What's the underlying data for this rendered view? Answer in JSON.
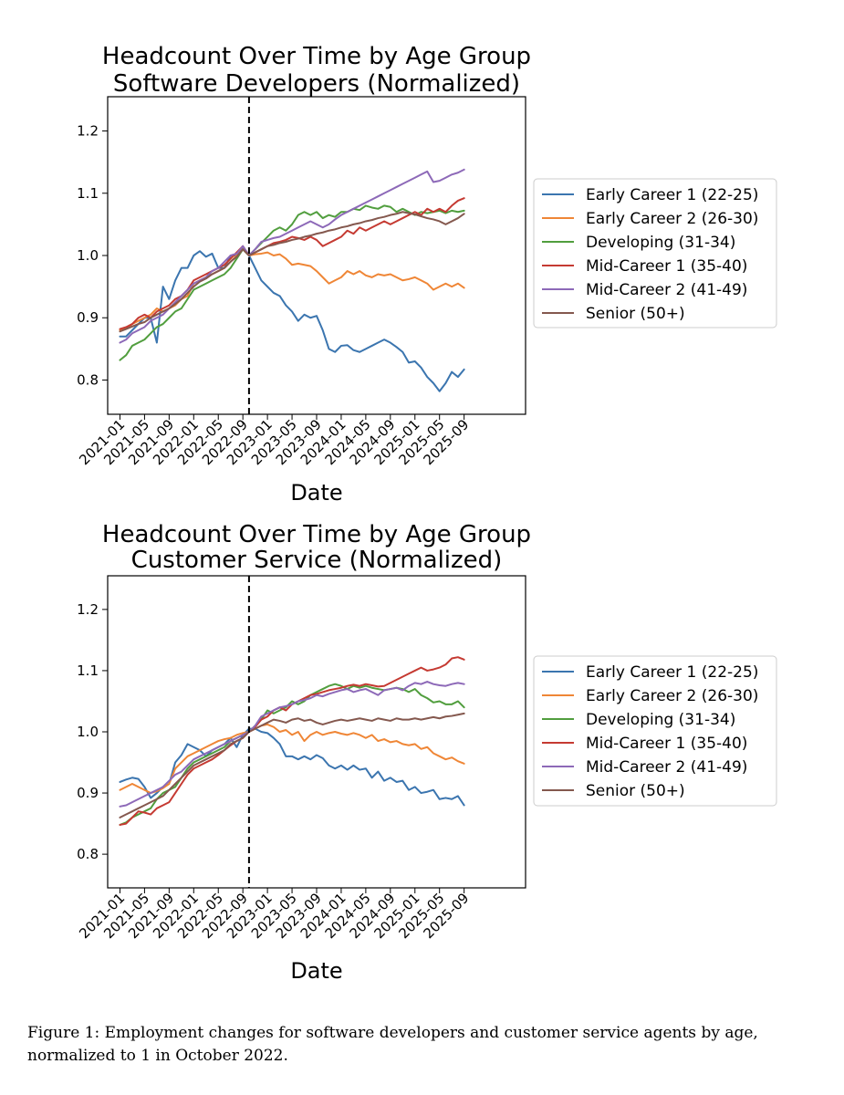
{
  "caption": "Figure 1: Employment changes for software developers and customer service agents by age, normalized to 1 in October 2022.",
  "colors": {
    "early1": "#3b75af",
    "early2": "#ef8636",
    "developing": "#519e3e",
    "mid1": "#c53a32",
    "mid2": "#8d69b8",
    "senior": "#84584e"
  },
  "chart_data": [
    {
      "type": "line",
      "title": "Headcount Over Time by Age Group\nSoftware Developers (Normalized)",
      "title_lines": [
        "Headcount Over Time by Age Group",
        "Software Developers (Normalized)"
      ],
      "xlabel": "Date",
      "ylabel": "",
      "x_range_months": [
        -2,
        66
      ],
      "ylim": [
        0.745,
        1.255
      ],
      "yticks": [
        0.8,
        0.9,
        1.0,
        1.1,
        1.2
      ],
      "ytick_labels": [
        "0.8",
        "0.9",
        "1.0",
        "1.1",
        "1.2"
      ],
      "xticks": [
        {
          "label": "2021-01",
          "m": 0
        },
        {
          "label": "2021-05",
          "m": 4
        },
        {
          "label": "2021-09",
          "m": 8
        },
        {
          "label": "2022-01",
          "m": 12
        },
        {
          "label": "2022-05",
          "m": 16
        },
        {
          "label": "2022-09",
          "m": 20
        },
        {
          "label": "2023-01",
          "m": 24
        },
        {
          "label": "2023-05",
          "m": 28
        },
        {
          "label": "2023-09",
          "m": 32
        },
        {
          "label": "2024-01",
          "m": 36
        },
        {
          "label": "2024-05",
          "m": 40
        },
        {
          "label": "2024-09",
          "m": 44
        },
        {
          "label": "2025-01",
          "m": 48
        },
        {
          "label": "2025-05",
          "m": 52
        },
        {
          "label": "2025-09",
          "m": 56
        }
      ],
      "vline_month": 21,
      "x_start": "2021-01",
      "legend_position": "right",
      "series": [
        {
          "name": "Early Career 1 (22-25)",
          "color_key": "early1",
          "values": [
            0.87,
            0.87,
            0.88,
            0.89,
            0.9,
            0.9,
            0.86,
            0.95,
            0.93,
            0.96,
            0.98,
            0.98,
            1.0,
            1.007,
            0.998,
            1.003,
            0.98,
            0.98,
            1.0,
            1.0,
            1.015,
            1.0,
            0.98,
            0.96,
            0.95,
            0.94,
            0.935,
            0.92,
            0.91,
            0.895,
            0.905,
            0.9,
            0.903,
            0.88,
            0.85,
            0.845,
            0.855,
            0.856,
            0.848,
            0.845,
            0.85,
            0.855,
            0.86,
            0.865,
            0.86,
            0.853,
            0.845,
            0.828,
            0.83,
            0.82,
            0.805,
            0.795,
            0.782,
            0.795,
            0.813,
            0.805,
            0.817
          ]
        },
        {
          "name": "Early Career 2 (26-30)",
          "color_key": "early2",
          "values": [
            0.88,
            0.882,
            0.89,
            0.895,
            0.9,
            0.905,
            0.915,
            0.91,
            0.915,
            0.92,
            0.93,
            0.935,
            0.955,
            0.96,
            0.965,
            0.97,
            0.975,
            0.98,
            0.99,
            1.0,
            1.01,
            1.0,
            1.002,
            1.003,
            1.005,
            1.0,
            1.002,
            0.995,
            0.985,
            0.987,
            0.985,
            0.983,
            0.975,
            0.965,
            0.955,
            0.96,
            0.965,
            0.975,
            0.97,
            0.975,
            0.968,
            0.965,
            0.97,
            0.968,
            0.97,
            0.965,
            0.96,
            0.962,
            0.965,
            0.96,
            0.955,
            0.945,
            0.95,
            0.955,
            0.95,
            0.955,
            0.948
          ]
        },
        {
          "name": "Developing (31-34)",
          "color_key": "developing",
          "values": [
            0.832,
            0.84,
            0.855,
            0.86,
            0.865,
            0.875,
            0.885,
            0.89,
            0.9,
            0.91,
            0.915,
            0.93,
            0.945,
            0.95,
            0.955,
            0.96,
            0.965,
            0.97,
            0.98,
            0.995,
            1.01,
            1.0,
            1.01,
            1.02,
            1.03,
            1.04,
            1.045,
            1.04,
            1.05,
            1.065,
            1.07,
            1.065,
            1.07,
            1.06,
            1.065,
            1.062,
            1.07,
            1.07,
            1.075,
            1.073,
            1.08,
            1.077,
            1.075,
            1.08,
            1.078,
            1.07,
            1.075,
            1.07,
            1.065,
            1.07,
            1.068,
            1.07,
            1.072,
            1.068,
            1.072,
            1.07,
            1.072
          ]
        },
        {
          "name": "Mid-Career 1 (35-40)",
          "color_key": "mid1",
          "values": [
            0.882,
            0.885,
            0.89,
            0.9,
            0.905,
            0.9,
            0.91,
            0.915,
            0.92,
            0.93,
            0.935,
            0.945,
            0.96,
            0.965,
            0.97,
            0.975,
            0.98,
            0.985,
            0.995,
            1.005,
            1.015,
            1.0,
            1.005,
            1.01,
            1.015,
            1.02,
            1.022,
            1.025,
            1.03,
            1.028,
            1.025,
            1.03,
            1.025,
            1.015,
            1.02,
            1.025,
            1.03,
            1.04,
            1.035,
            1.045,
            1.04,
            1.045,
            1.05,
            1.055,
            1.05,
            1.055,
            1.06,
            1.065,
            1.07,
            1.065,
            1.075,
            1.07,
            1.075,
            1.07,
            1.08,
            1.088,
            1.092
          ]
        },
        {
          "name": "Mid-Career 2 (41-49)",
          "color_key": "mid2",
          "values": [
            0.86,
            0.865,
            0.875,
            0.88,
            0.885,
            0.895,
            0.9,
            0.905,
            0.915,
            0.925,
            0.935,
            0.945,
            0.955,
            0.96,
            0.965,
            0.975,
            0.98,
            0.99,
            1.0,
            1.003,
            1.015,
            1.0,
            1.01,
            1.022,
            1.025,
            1.028,
            1.03,
            1.035,
            1.04,
            1.045,
            1.05,
            1.055,
            1.05,
            1.045,
            1.05,
            1.058,
            1.065,
            1.07,
            1.075,
            1.08,
            1.085,
            1.09,
            1.095,
            1.1,
            1.105,
            1.11,
            1.115,
            1.12,
            1.125,
            1.13,
            1.135,
            1.118,
            1.12,
            1.125,
            1.13,
            1.133,
            1.138
          ]
        },
        {
          "name": "Senior (50+)",
          "color_key": "senior",
          "values": [
            0.878,
            0.882,
            0.886,
            0.89,
            0.893,
            0.9,
            0.905,
            0.91,
            0.915,
            0.922,
            0.93,
            0.94,
            0.95,
            0.958,
            0.963,
            0.97,
            0.975,
            0.98,
            0.99,
            0.998,
            1.01,
            1.0,
            1.005,
            1.01,
            1.015,
            1.017,
            1.02,
            1.022,
            1.025,
            1.027,
            1.03,
            1.032,
            1.035,
            1.037,
            1.04,
            1.042,
            1.045,
            1.047,
            1.05,
            1.052,
            1.055,
            1.057,
            1.06,
            1.062,
            1.065,
            1.067,
            1.07,
            1.068,
            1.066,
            1.063,
            1.06,
            1.058,
            1.055,
            1.05,
            1.055,
            1.06,
            1.067
          ]
        }
      ]
    },
    {
      "type": "line",
      "title": "Headcount Over Time by Age Group\nCustomer Service (Normalized)",
      "title_lines": [
        "Headcount Over Time by Age Group",
        "Customer Service (Normalized)"
      ],
      "xlabel": "Date",
      "ylabel": "",
      "x_range_months": [
        -2,
        66
      ],
      "ylim": [
        0.745,
        1.255
      ],
      "yticks": [
        0.8,
        0.9,
        1.0,
        1.1,
        1.2
      ],
      "ytick_labels": [
        "0.8",
        "0.9",
        "1.0",
        "1.1",
        "1.2"
      ],
      "xticks": [
        {
          "label": "2021-01",
          "m": 0
        },
        {
          "label": "2021-05",
          "m": 4
        },
        {
          "label": "2021-09",
          "m": 8
        },
        {
          "label": "2022-01",
          "m": 12
        },
        {
          "label": "2022-05",
          "m": 16
        },
        {
          "label": "2022-09",
          "m": 20
        },
        {
          "label": "2023-01",
          "m": 24
        },
        {
          "label": "2023-05",
          "m": 28
        },
        {
          "label": "2023-09",
          "m": 32
        },
        {
          "label": "2024-01",
          "m": 36
        },
        {
          "label": "2024-05",
          "m": 40
        },
        {
          "label": "2024-09",
          "m": 44
        },
        {
          "label": "2025-01",
          "m": 48
        },
        {
          "label": "2025-05",
          "m": 52
        },
        {
          "label": "2025-09",
          "m": 56
        }
      ],
      "vline_month": 21,
      "x_start": "2021-01",
      "legend_position": "right",
      "series": [
        {
          "name": "Early Career 1 (22-25)",
          "color_key": "early1",
          "values": [
            0.918,
            0.922,
            0.925,
            0.923,
            0.91,
            0.892,
            0.9,
            0.91,
            0.915,
            0.95,
            0.962,
            0.98,
            0.975,
            0.97,
            0.96,
            0.97,
            0.975,
            0.98,
            0.99,
            0.975,
            0.995,
            1.005,
            1.005,
            1.0,
            0.998,
            0.99,
            0.98,
            0.96,
            0.96,
            0.955,
            0.96,
            0.955,
            0.962,
            0.957,
            0.945,
            0.94,
            0.945,
            0.938,
            0.945,
            0.938,
            0.94,
            0.925,
            0.935,
            0.92,
            0.925,
            0.918,
            0.92,
            0.905,
            0.91,
            0.9,
            0.902,
            0.905,
            0.89,
            0.892,
            0.89,
            0.895,
            0.88
          ]
        },
        {
          "name": "Early Career 2 (26-30)",
          "color_key": "early2",
          "values": [
            0.905,
            0.91,
            0.915,
            0.91,
            0.905,
            0.9,
            0.903,
            0.908,
            0.915,
            0.94,
            0.95,
            0.96,
            0.965,
            0.97,
            0.975,
            0.98,
            0.985,
            0.988,
            0.99,
            0.995,
            0.998,
            1.0,
            1.005,
            1.01,
            1.012,
            1.008,
            1.0,
            1.003,
            0.995,
            1.0,
            0.985,
            0.995,
            1.0,
            0.995,
            0.998,
            1.0,
            0.997,
            0.995,
            0.998,
            0.995,
            0.99,
            0.995,
            0.985,
            0.988,
            0.983,
            0.985,
            0.98,
            0.978,
            0.98,
            0.972,
            0.975,
            0.965,
            0.96,
            0.955,
            0.958,
            0.952,
            0.948
          ]
        },
        {
          "name": "Developing (31-34)",
          "color_key": "developing",
          "values": [
            0.848,
            0.852,
            0.86,
            0.865,
            0.87,
            0.875,
            0.89,
            0.9,
            0.905,
            0.91,
            0.925,
            0.94,
            0.95,
            0.955,
            0.96,
            0.965,
            0.97,
            0.975,
            0.985,
            0.99,
            0.995,
            1.0,
            1.01,
            1.02,
            1.035,
            1.03,
            1.035,
            1.04,
            1.05,
            1.045,
            1.05,
            1.06,
            1.065,
            1.07,
            1.075,
            1.078,
            1.075,
            1.07,
            1.075,
            1.072,
            1.075,
            1.072,
            1.07,
            1.068,
            1.07,
            1.072,
            1.07,
            1.065,
            1.07,
            1.06,
            1.055,
            1.048,
            1.05,
            1.045,
            1.045,
            1.05,
            1.04
          ]
        },
        {
          "name": "Mid-Career 1 (35-40)",
          "color_key": "mid1",
          "values": [
            0.848,
            0.85,
            0.86,
            0.87,
            0.868,
            0.865,
            0.875,
            0.88,
            0.885,
            0.9,
            0.915,
            0.93,
            0.94,
            0.945,
            0.95,
            0.955,
            0.962,
            0.97,
            0.978,
            0.985,
            0.99,
            1.0,
            1.008,
            1.02,
            1.025,
            1.035,
            1.04,
            1.035,
            1.045,
            1.05,
            1.055,
            1.06,
            1.062,
            1.065,
            1.068,
            1.07,
            1.072,
            1.075,
            1.077,
            1.075,
            1.078,
            1.076,
            1.074,
            1.075,
            1.08,
            1.085,
            1.09,
            1.095,
            1.1,
            1.105,
            1.1,
            1.102,
            1.105,
            1.11,
            1.12,
            1.122,
            1.118
          ]
        },
        {
          "name": "Mid-Career 2 (41-49)",
          "color_key": "mid2",
          "values": [
            0.878,
            0.88,
            0.885,
            0.89,
            0.895,
            0.9,
            0.905,
            0.91,
            0.92,
            0.93,
            0.935,
            0.945,
            0.955,
            0.96,
            0.965,
            0.97,
            0.975,
            0.98,
            0.985,
            0.99,
            0.995,
            1.0,
            1.01,
            1.025,
            1.03,
            1.035,
            1.04,
            1.042,
            1.045,
            1.05,
            1.052,
            1.055,
            1.06,
            1.058,
            1.062,
            1.065,
            1.068,
            1.07,
            1.065,
            1.068,
            1.07,
            1.065,
            1.06,
            1.068,
            1.07,
            1.072,
            1.068,
            1.075,
            1.08,
            1.078,
            1.082,
            1.078,
            1.076,
            1.075,
            1.078,
            1.08,
            1.078
          ]
        },
        {
          "name": "Senior (50+)",
          "color_key": "senior",
          "values": [
            0.86,
            0.865,
            0.87,
            0.875,
            0.88,
            0.885,
            0.89,
            0.895,
            0.905,
            0.915,
            0.925,
            0.935,
            0.945,
            0.95,
            0.955,
            0.96,
            0.965,
            0.97,
            0.98,
            0.985,
            0.99,
            1.0,
            1.005,
            1.01,
            1.015,
            1.02,
            1.018,
            1.015,
            1.02,
            1.022,
            1.018,
            1.02,
            1.015,
            1.012,
            1.015,
            1.018,
            1.02,
            1.018,
            1.02,
            1.022,
            1.02,
            1.018,
            1.022,
            1.02,
            1.018,
            1.022,
            1.02,
            1.02,
            1.022,
            1.02,
            1.022,
            1.024,
            1.022,
            1.025,
            1.026,
            1.028,
            1.03
          ]
        }
      ]
    }
  ]
}
